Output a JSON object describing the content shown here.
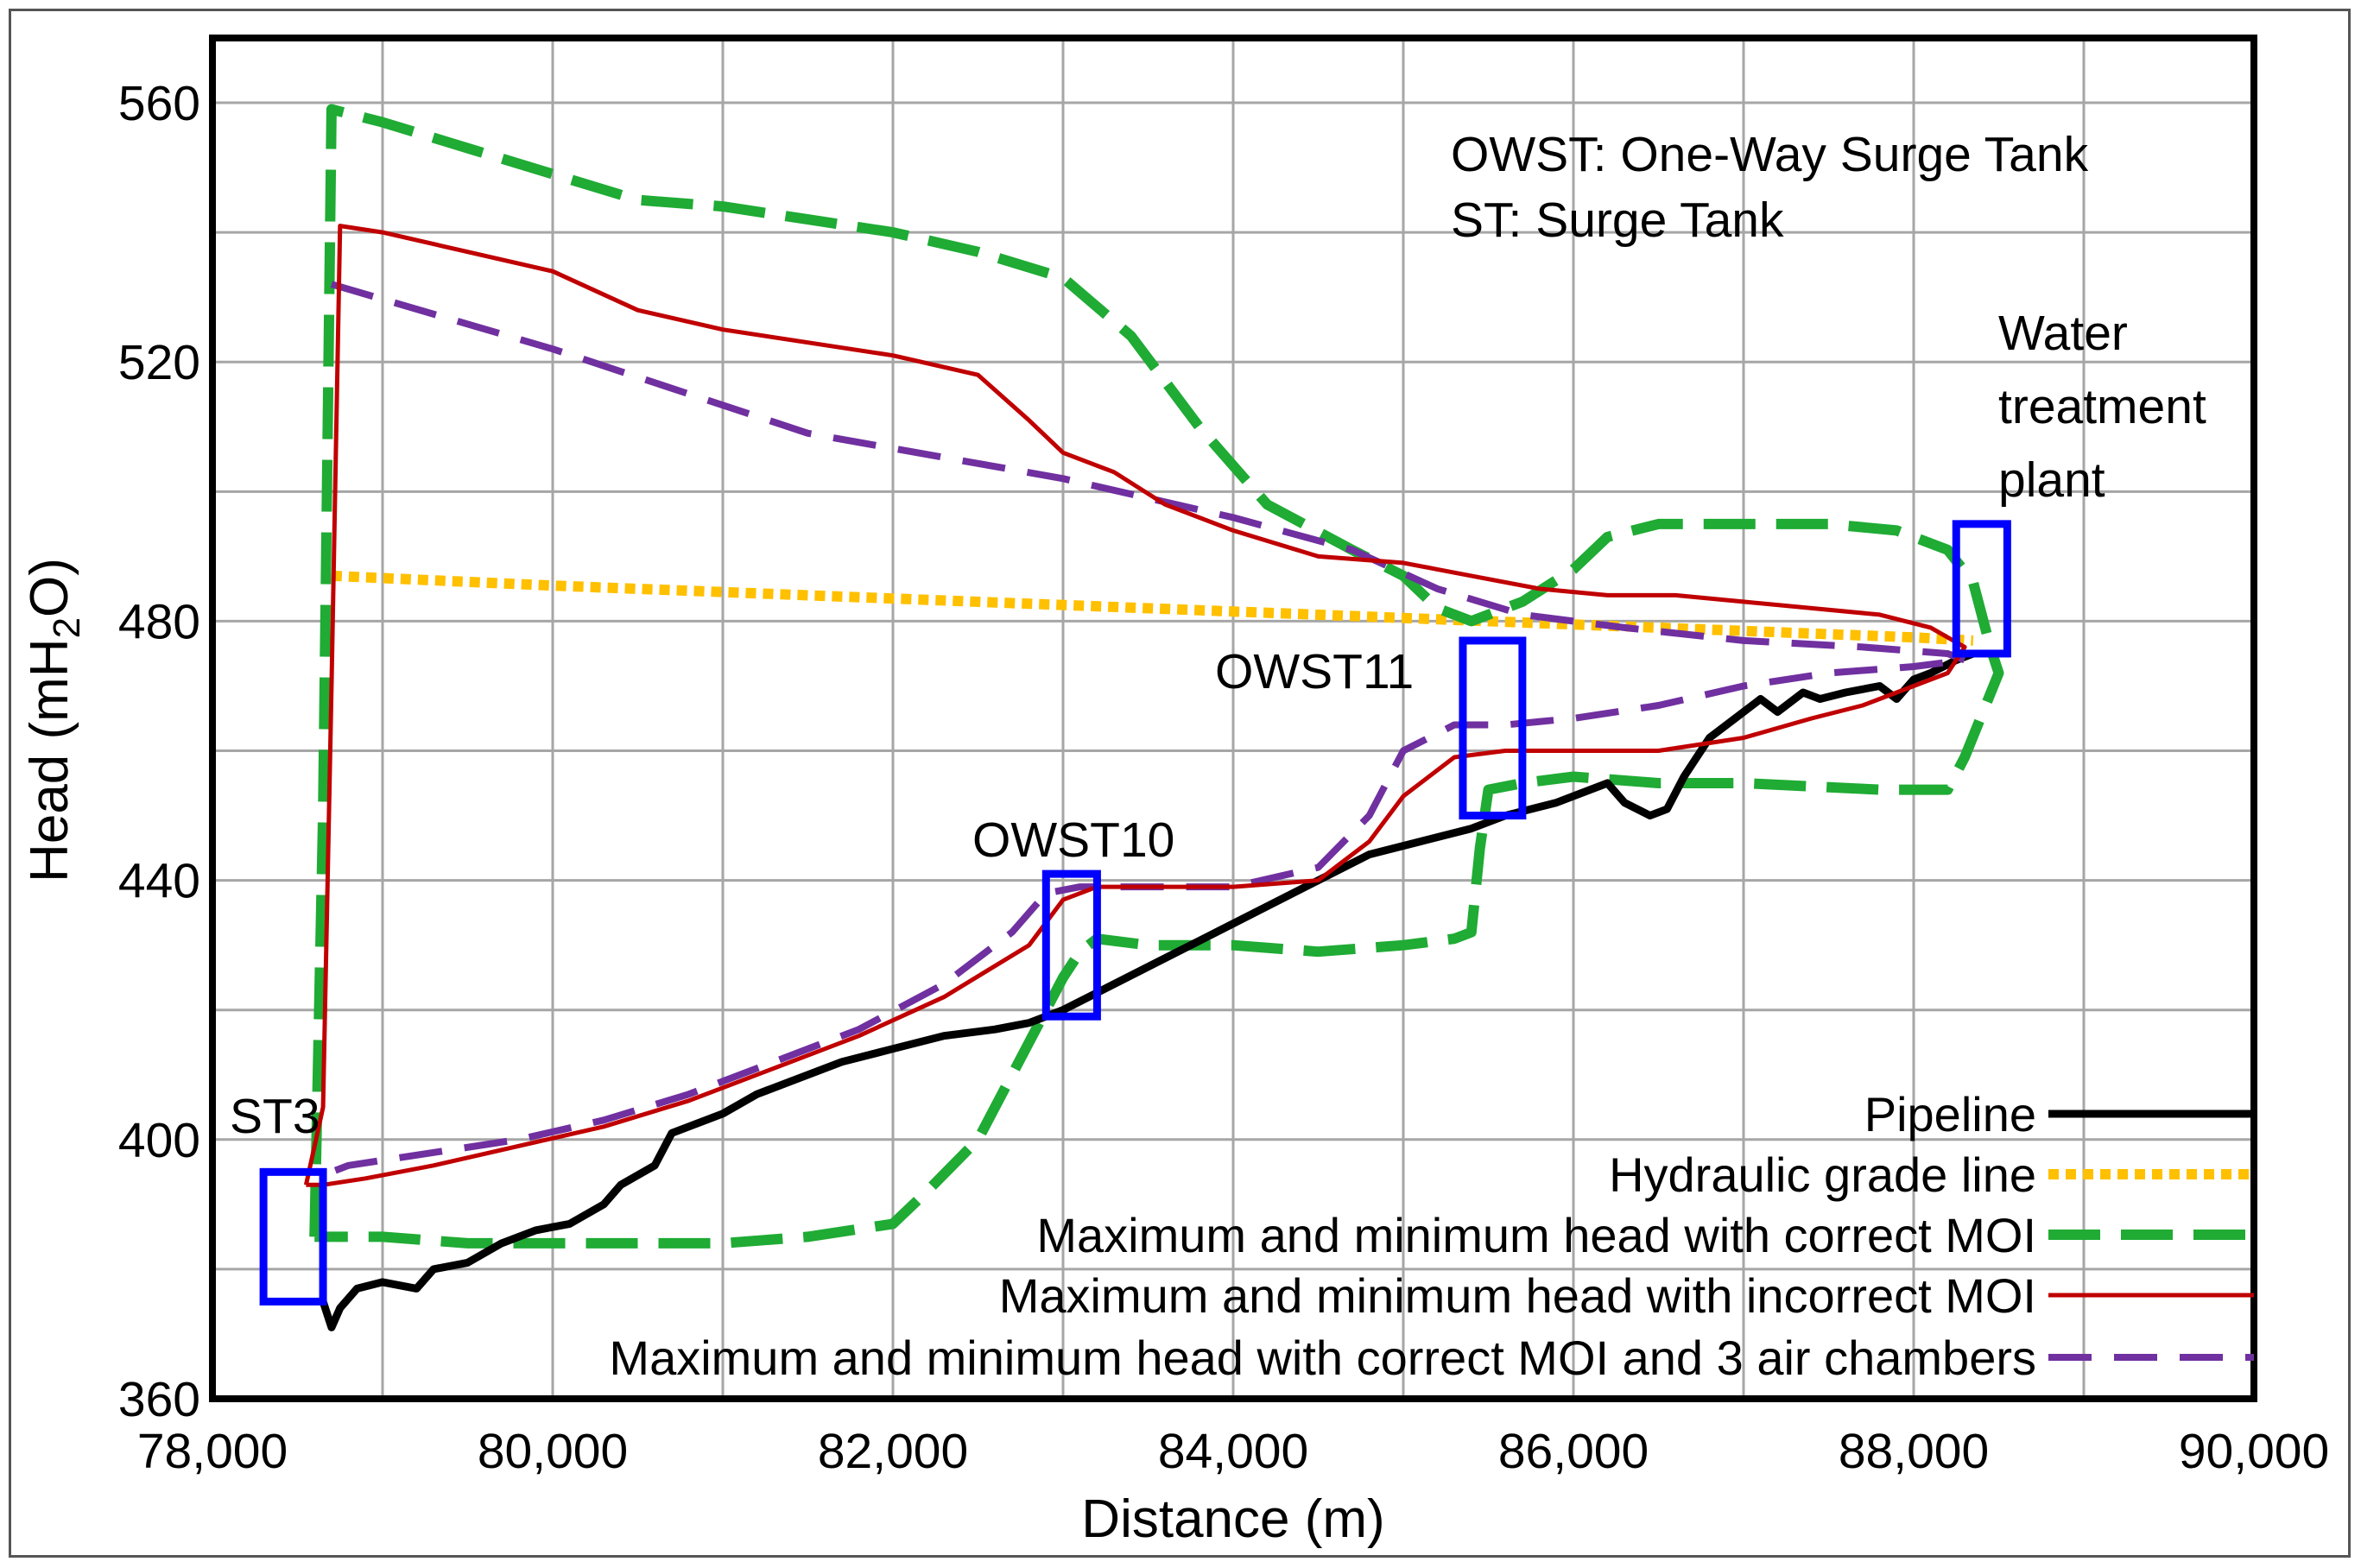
{
  "chart_data": {
    "type": "line",
    "title": "",
    "xlabel": "Distance (m)",
    "ylabel_main": "Head (mH",
    "ylabel_sub": "2",
    "ylabel_end": "O)",
    "xlim": [
      78000,
      90000
    ],
    "ylim": [
      360,
      570
    ],
    "xticks": [
      78000,
      80000,
      82000,
      84000,
      86000,
      88000,
      90000
    ],
    "xtick_labels": [
      "78,000",
      "80,000",
      "82,000",
      "84,000",
      "86,000",
      "88,000",
      "90,000"
    ],
    "yticks": [
      360,
      400,
      440,
      480,
      520,
      560
    ],
    "ytick_labels": [
      "360",
      "400",
      "440",
      "480",
      "520",
      "560"
    ],
    "grid": true,
    "notes": [
      "OWST: One-Way Surge Tank",
      "ST: Surge Tank"
    ],
    "annotations": [
      {
        "id": "wtp",
        "lines": [
          "Water",
          "treatment",
          "plant"
        ]
      },
      {
        "id": "owst11",
        "lines": [
          "OWST11"
        ]
      },
      {
        "id": "owst10",
        "lines": [
          "OWST10"
        ]
      },
      {
        "id": "st3",
        "lines": [
          "ST3"
        ]
      }
    ],
    "tanks": [
      {
        "name": "ST3",
        "x": [
          78300,
          78650
        ],
        "y": [
          375,
          395
        ]
      },
      {
        "name": "OWST10",
        "x": [
          82900,
          83200
        ],
        "y": [
          419,
          441
        ]
      },
      {
        "name": "OWST11",
        "x": [
          85350,
          85700
        ],
        "y": [
          450,
          477
        ]
      },
      {
        "name": "Water treatment plant",
        "x": [
          88250,
          88550
        ],
        "y": [
          475,
          495
        ]
      }
    ],
    "series": [
      {
        "name": "Pipeline",
        "color": "#000000",
        "style": "solid",
        "width": 9,
        "x": [
          78650,
          78700,
          78750,
          78850,
          79000,
          79200,
          79300,
          79500,
          79700,
          79900,
          80100,
          80300,
          80400,
          80600,
          80700,
          80900,
          81000,
          81200,
          81400,
          81700,
          82000,
          82300,
          82600,
          82800,
          83000,
          83300,
          83600,
          83900,
          84200,
          84500,
          84800,
          85100,
          85400,
          85600,
          85900,
          86200,
          86300,
          86450,
          86550,
          86650,
          86800,
          86950,
          87100,
          87200,
          87350,
          87450,
          87600,
          87800,
          87900,
          88000,
          88100,
          88250,
          88350
        ],
        "y": [
          375,
          371,
          374,
          377,
          378,
          377,
          380,
          381,
          384,
          386,
          387,
          390,
          393,
          396,
          401,
          403,
          404,
          407,
          409,
          412,
          414,
          416,
          417,
          418,
          420,
          424,
          428,
          432,
          436,
          440,
          444,
          446,
          448,
          450,
          452,
          455,
          452,
          450,
          451,
          456,
          462,
          465,
          468,
          466,
          469,
          468,
          469,
          470,
          468,
          471,
          472,
          474,
          475
        ]
      },
      {
        "name": "Hydraulic grade line",
        "color": "#ffc000",
        "style": "dotted",
        "width": 12,
        "x": [
          78700,
          80000,
          82000,
          84000,
          86000,
          88000,
          88350
        ],
        "y": [
          487,
          485.5,
          483.5,
          481.5,
          479.5,
          477.5,
          477
        ]
      },
      {
        "name": "Maximum and minimum head with correct MOI",
        "color": "#1fab34",
        "style": "dashed",
        "width": 12,
        "x": [
          78600,
          78650,
          78700,
          79000,
          79500,
          80000,
          80500,
          81000,
          81500,
          82000,
          82500,
          83000,
          83400,
          83800,
          84200,
          84700,
          85000,
          85200,
          85400,
          85500,
          85700,
          86000,
          86200,
          86500,
          87000,
          87500,
          87900,
          88200,
          88350,
          88450,
          88500,
          88300,
          88200,
          87800,
          87000,
          86500,
          86000,
          85700,
          85500,
          85450,
          85400,
          85300,
          85000,
          84500,
          84000,
          83500,
          83200,
          83100,
          83000,
          82700,
          82500,
          82200,
          82000,
          81500,
          81000,
          80500,
          80000,
          79500,
          79000,
          78700,
          78600
        ],
        "y": [
          385,
          450,
          559,
          557,
          553,
          549,
          545,
          544,
          542,
          540,
          537,
          533,
          524,
          510,
          498,
          491,
          487,
          482,
          480,
          481,
          483,
          488,
          493,
          495,
          495,
          495,
          494,
          491,
          486,
          476,
          472,
          459,
          454,
          454,
          455,
          455,
          456,
          455,
          454,
          445,
          432,
          431,
          430,
          429,
          430,
          430,
          431,
          429,
          425,
          410,
          400,
          392,
          387,
          385,
          384,
          384,
          384,
          384,
          385,
          385,
          385
        ]
      },
      {
        "name": "Maximum and minimum head with incorrect MOI",
        "color": "#c00000",
        "style": "solid",
        "width": 5,
        "x": [
          78550,
          78650,
          78700,
          78750,
          79000,
          79500,
          80000,
          80500,
          81000,
          81500,
          82000,
          82500,
          82800,
          83000,
          83300,
          83600,
          84000,
          84500,
          85000,
          85200,
          85400,
          85800,
          86200,
          86600,
          87000,
          87400,
          87800,
          88100,
          88300,
          88200,
          88000,
          87700,
          87400,
          87000,
          86500,
          86000,
          85600,
          85300,
          85000,
          84800,
          84500,
          84000,
          83500,
          83200,
          83000,
          82800,
          82300,
          81800,
          81300,
          80800,
          80300,
          79800,
          79300,
          78900,
          78650,
          78550
        ],
        "y": [
          393,
          405,
          470,
          541,
          540,
          537,
          534,
          528,
          525,
          523,
          521,
          518,
          511,
          506,
          503,
          498,
          494,
          490,
          489,
          488,
          487,
          485,
          484,
          484,
          483,
          482,
          481,
          479,
          476,
          472,
          470,
          467,
          465,
          462,
          460,
          460,
          460,
          459,
          453,
          446,
          440,
          439,
          439,
          439,
          437,
          430,
          422,
          416,
          411,
          406,
          402,
          399,
          396,
          394,
          393,
          393
        ]
      },
      {
        "name": "Maximum and minimum head with correct MOI and 3 air chambers",
        "color": "#7030a0",
        "style": "dashed",
        "width": 8,
        "x": [
          78700,
          80000,
          81500,
          83000,
          84000,
          84700,
          85200,
          85700,
          86300,
          87000,
          87700,
          88200,
          88300,
          88000,
          87500,
          87000,
          86500,
          86000,
          85600,
          85300,
          85000,
          84800,
          84500,
          84000,
          83500,
          83100,
          82900,
          82700,
          82300,
          81800,
          81300,
          80800,
          80300,
          79800,
          79300,
          78800,
          78700
        ],
        "y": [
          532,
          522,
          509,
          502,
          496,
          491,
          485,
          481,
          479,
          477,
          476,
          475,
          474,
          473,
          472,
          470,
          467,
          465,
          464,
          464,
          460,
          450,
          442,
          439,
          439,
          439,
          438,
          432,
          424,
          417,
          412,
          407,
          403,
          400,
          398,
          396,
          395
        ]
      }
    ],
    "legend_position": "bottom-right"
  }
}
